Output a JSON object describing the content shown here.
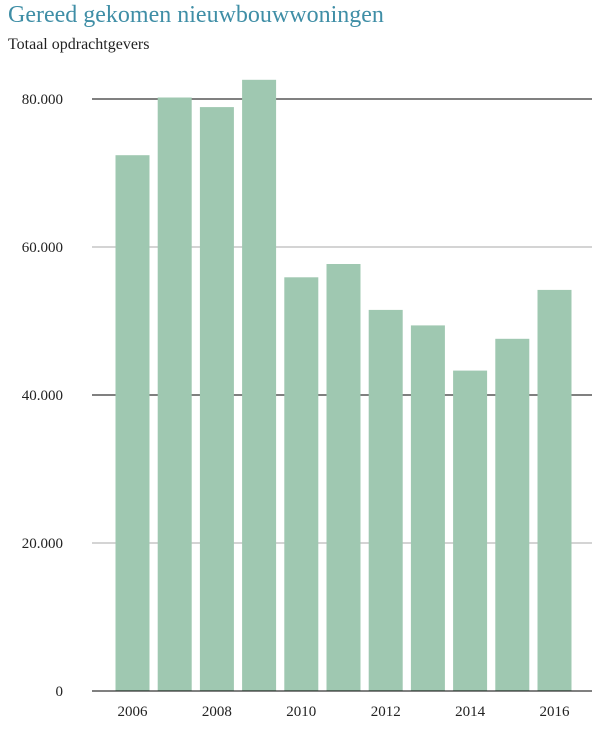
{
  "chart_data": {
    "type": "bar",
    "title": "Gereed gekomen nieuwbouwwoningen",
    "subtitle": "Totaal opdrachtgevers",
    "xlabel": "",
    "ylabel": "",
    "categories": [
      "2006",
      "2007",
      "2008",
      "2009",
      "2010",
      "2011",
      "2012",
      "2013",
      "2014",
      "2015",
      "2016"
    ],
    "values": [
      72400,
      80200,
      78900,
      82600,
      55900,
      57700,
      51500,
      49400,
      43300,
      47600,
      54200
    ],
    "ylim": [
      0,
      80000
    ],
    "y_ticks": [
      0,
      20000,
      40000,
      60000,
      80000
    ],
    "y_tick_labels": [
      "0",
      "20.000",
      "40.000",
      "60.000",
      "80.000"
    ],
    "x_tick_labels": [
      "2006",
      "2008",
      "2010",
      "2012",
      "2014",
      "2016"
    ],
    "grid": true,
    "colors": {
      "bar": "#9fc8b1",
      "title": "#3f8ea6",
      "grid_major": "#000000",
      "grid_minor": "#aaaaaa"
    }
  }
}
